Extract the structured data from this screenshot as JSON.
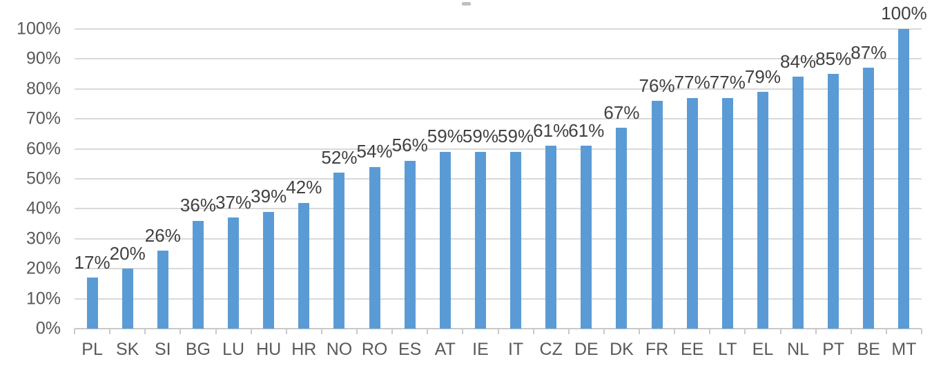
{
  "chart_data": {
    "type": "bar",
    "title": "",
    "xlabel": "",
    "ylabel": "",
    "categories": [
      "PL",
      "SK",
      "SI",
      "BG",
      "LU",
      "HU",
      "HR",
      "NO",
      "RO",
      "ES",
      "AT",
      "IE",
      "IT",
      "CZ",
      "DE",
      "DK",
      "FR",
      "EE",
      "LT",
      "EL",
      "NL",
      "PT",
      "BE",
      "MT"
    ],
    "values": [
      17,
      20,
      26,
      36,
      37,
      39,
      42,
      52,
      54,
      56,
      59,
      59,
      59,
      61,
      61,
      67,
      76,
      77,
      77,
      79,
      84,
      85,
      87,
      100
    ],
    "data_labels": [
      "17%",
      "20%",
      "26%",
      "36%",
      "37%",
      "39%",
      "42%",
      "52%",
      "54%",
      "56%",
      "59%",
      "59%",
      "59%",
      "61%",
      "61%",
      "67%",
      "76%",
      "77%",
      "77%",
      "79%",
      "84%",
      "85%",
      "87%",
      "100%"
    ],
    "y_tick_labels": [
      "0%",
      "10%",
      "20%",
      "30%",
      "40%",
      "50%",
      "60%",
      "70%",
      "80%",
      "90%",
      "100%"
    ],
    "ylim": [
      0,
      100
    ],
    "grid": true,
    "legend": false,
    "colors": {
      "bar": "#5B9BD5",
      "gridline": "#D9D9D9",
      "axis": "#C9C9C9",
      "value_label": "#404040",
      "tick_label": "#595959"
    }
  }
}
